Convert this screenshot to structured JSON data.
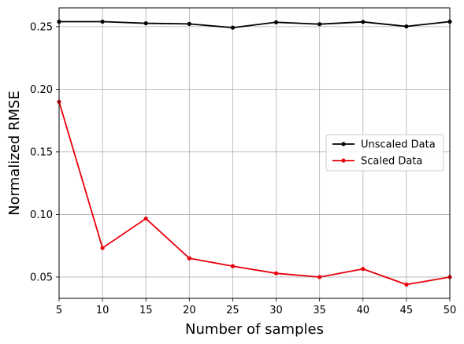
{
  "chart_data": {
    "type": "line",
    "title": "",
    "xlabel": "Number of samples",
    "ylabel": "Normalized RMSE",
    "xlim": [
      5,
      50
    ],
    "ylim": [
      0.033,
      0.265
    ],
    "xticks": [
      5,
      10,
      15,
      20,
      25,
      30,
      35,
      40,
      45,
      50
    ],
    "xtick_labels": [
      "5",
      "10",
      "15",
      "20",
      "25",
      "30",
      "35",
      "40",
      "45",
      "50"
    ],
    "yticks": [
      0.05,
      0.1,
      0.15,
      0.2,
      0.25
    ],
    "ytick_labels": [
      "0.05",
      "0.10",
      "0.15",
      "0.20",
      "0.25"
    ],
    "grid": true,
    "legend_position": "center-right",
    "x": [
      5,
      10,
      15,
      20,
      25,
      30,
      35,
      40,
      45,
      50
    ],
    "series": [
      {
        "name": "Unscaled Data",
        "color": "#000000",
        "marker": "dot",
        "values": [
          0.254,
          0.254,
          0.2527,
          0.2522,
          0.2492,
          0.2535,
          0.252,
          0.2538,
          0.2502,
          0.254
        ]
      },
      {
        "name": "Scaled Data",
        "color": "#e8000b",
        "marker": "dot",
        "values": [
          0.19,
          0.0732,
          0.0967,
          0.065,
          0.0587,
          0.053,
          0.05,
          0.0565,
          0.044,
          0.05
        ]
      }
    ]
  }
}
